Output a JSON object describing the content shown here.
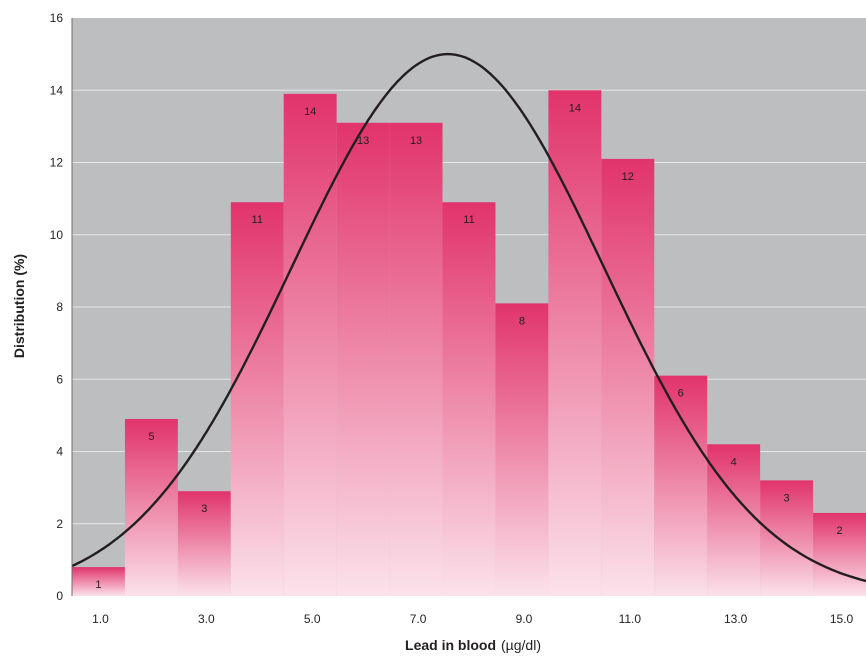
{
  "chart_data": {
    "type": "bar",
    "title": "",
    "xlabel": "Lead in blood",
    "xlabel_unit": "(µg/dl)",
    "ylabel": "Distribution (%)",
    "ylim": [
      0,
      16
    ],
    "xlim": [
      0.5,
      15.5
    ],
    "y_ticks": [
      "0",
      "2",
      "4",
      "6",
      "8",
      "10",
      "12",
      "14",
      "16"
    ],
    "x_ticks": [
      {
        "value": 1,
        "label": "1.0"
      },
      {
        "value": 3,
        "label": "3.0"
      },
      {
        "value": 5,
        "label": "5.0"
      },
      {
        "value": 7,
        "label": "7.0"
      },
      {
        "value": 9,
        "label": "9.0"
      },
      {
        "value": 11,
        "label": "11.0"
      },
      {
        "value": 13,
        "label": "13.0"
      },
      {
        "value": 15,
        "label": "15.0"
      }
    ],
    "grid": true,
    "bins": [
      {
        "center": 1,
        "value": 0.8,
        "label": "1"
      },
      {
        "center": 2,
        "value": 4.9,
        "label": "5"
      },
      {
        "center": 3,
        "value": 2.9,
        "label": "3"
      },
      {
        "center": 4,
        "value": 10.9,
        "label": "11"
      },
      {
        "center": 5,
        "value": 13.9,
        "label": "14"
      },
      {
        "center": 6,
        "value": 13.1,
        "label": "13"
      },
      {
        "center": 7,
        "value": 13.1,
        "label": "13"
      },
      {
        "center": 8,
        "value": 10.9,
        "label": "11"
      },
      {
        "center": 9,
        "value": 8.1,
        "label": "8"
      },
      {
        "center": 10,
        "value": 14.0,
        "label": "14"
      },
      {
        "center": 11,
        "value": 12.1,
        "label": "12"
      },
      {
        "center": 12,
        "value": 6.1,
        "label": "6"
      },
      {
        "center": 13,
        "value": 4.2,
        "label": "4"
      },
      {
        "center": 14,
        "value": 3.2,
        "label": "3"
      },
      {
        "center": 15,
        "value": 2.3,
        "label": "2"
      }
    ],
    "fit_curve": {
      "type": "normal",
      "mean": 7.6,
      "sd": 2.95,
      "peak": 15.0
    },
    "colors": {
      "plot_background": "#bdbec0",
      "gridline": "#e6e6e7",
      "bar_top": "#e1336c",
      "bar_bottom": "#fbe2ea",
      "curve": "#231f20",
      "text": "#231f20"
    }
  }
}
